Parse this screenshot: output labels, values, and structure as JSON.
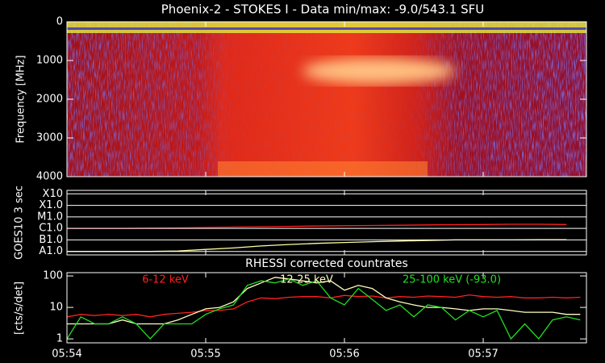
{
  "chart_data": [
    {
      "type": "spectrogram",
      "title": "Phoenix-2 - STOKES I - Data min/max: -9.0/543.1 SFU",
      "ylabel": "Frequency [MHz]",
      "ylim": [
        0,
        4000
      ],
      "y_inverted": true,
      "yticks": [
        0,
        1000,
        2000,
        3000,
        4000
      ],
      "xlim": [
        354,
        357.744
      ]
    },
    {
      "type": "line",
      "ylabel": "GOES10 3 sec",
      "log_y": true,
      "grid": true,
      "ylim": [
        5e-09,
        0.002
      ],
      "yticks": [
        {
          "value": 0.001,
          "label": "X10"
        },
        {
          "value": 0.0001,
          "label": "X1.0"
        },
        {
          "value": 1e-05,
          "label": "M1.0"
        },
        {
          "value": 1e-06,
          "label": "C1.0"
        },
        {
          "value": 1e-07,
          "label": "B1.0"
        },
        {
          "value": 1e-08,
          "label": "A1.0"
        }
      ],
      "xlim": [
        354,
        357.744
      ],
      "x": [
        354.0,
        354.2,
        354.4,
        354.6,
        354.8,
        355.0,
        355.2,
        355.4,
        355.6,
        355.8,
        356.0,
        356.2,
        356.4,
        356.6,
        356.8,
        357.0,
        357.2,
        357.4,
        357.6
      ],
      "series": [
        {
          "color": "#ff2020",
          "values": [
            1e-06,
            1e-06,
            1e-06,
            1.05e-06,
            1.1e-06,
            1.2e-06,
            1.3e-06,
            1.4e-06,
            1.5e-06,
            1.6e-06,
            1.7e-06,
            1.8e-06,
            1.9e-06,
            2e-06,
            2.1e-06,
            2.2e-06,
            2.3e-06,
            2.3e-06,
            2.2e-06
          ]
        },
        {
          "color": "#ffffa0",
          "values": [
            1e-08,
            1e-08,
            1e-08,
            1e-08,
            1.1e-08,
            1.5e-08,
            2e-08,
            3e-08,
            4e-08,
            5e-08,
            6e-08,
            7e-08,
            8e-08,
            9e-08,
            1e-07,
            1e-07,
            1e-07,
            1.05e-07,
            1.05e-07
          ]
        }
      ]
    },
    {
      "type": "line",
      "title": "RHESSI corrected countrates",
      "ylabel": "[cts/s/det]",
      "log_y": true,
      "ylim": [
        0.75,
        127
      ],
      "yticks": [
        1,
        10,
        100
      ],
      "xlim": [
        354,
        357.744
      ],
      "xticks": [
        {
          "value": 354,
          "label": "05:54"
        },
        {
          "value": 355,
          "label": "05:55"
        },
        {
          "value": 356,
          "label": "05:56"
        },
        {
          "value": 357,
          "label": "05:57"
        }
      ],
      "x": [
        354.0,
        354.1,
        354.2,
        354.3,
        354.4,
        354.5,
        354.6,
        354.7,
        354.8,
        354.9,
        355.0,
        355.1,
        355.2,
        355.3,
        355.4,
        355.5,
        355.6,
        355.7,
        355.8,
        355.9,
        356.0,
        356.1,
        356.2,
        356.3,
        356.4,
        356.5,
        356.6,
        356.7,
        356.8,
        356.9,
        357.0,
        357.1,
        357.2,
        357.3,
        357.4,
        357.5,
        357.6,
        357.7
      ],
      "series": [
        {
          "name": "6-12 keV",
          "color": "#ff2020",
          "values": [
            5,
            6,
            5.5,
            6,
            5.5,
            6,
            5,
            6,
            6.5,
            7,
            8,
            8,
            9,
            15,
            20,
            19,
            21,
            22,
            22,
            20,
            24,
            22,
            23,
            20,
            22,
            21,
            23,
            22,
            21,
            25,
            22,
            21,
            22,
            20,
            20,
            21,
            20,
            21
          ]
        },
        {
          "name": "12-25 keV",
          "color": "#ffffc0",
          "values": [
            3,
            3,
            3,
            3,
            4,
            3,
            3,
            3,
            4,
            6,
            9,
            10,
            15,
            40,
            60,
            90,
            80,
            70,
            60,
            70,
            35,
            50,
            40,
            20,
            15,
            12,
            10,
            10,
            9,
            8,
            9,
            9,
            8,
            7,
            7,
            7,
            6,
            6
          ]
        },
        {
          "name": "25-100 keV (-93.0)",
          "color": "#20e020",
          "values": [
            1,
            5,
            3,
            3,
            5,
            3,
            1,
            3,
            3,
            3,
            6,
            9,
            12,
            50,
            70,
            60,
            80,
            50,
            70,
            20,
            12,
            40,
            18,
            8,
            12,
            5,
            12,
            10,
            4,
            8,
            5,
            8,
            1,
            3,
            1,
            4,
            5,
            4
          ]
        }
      ]
    }
  ]
}
